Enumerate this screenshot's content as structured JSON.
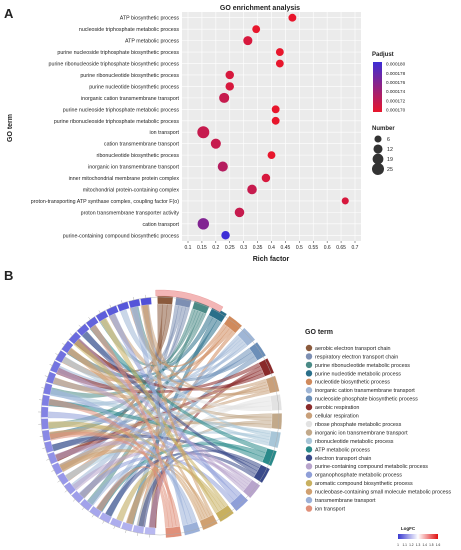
{
  "panel_a": {
    "label": "A",
    "chart_data": {
      "type": "scatter",
      "title": "GO enrichment analysis",
      "xlabel": "Rich factor",
      "ylabel": "GO term",
      "xlim": [
        0.1,
        0.7
      ],
      "xticks": [
        "0.1",
        "0.15",
        "0.2",
        "0.25",
        "0.3",
        "0.35",
        "0.4",
        "0.45",
        "0.5",
        "0.55",
        "0.6",
        "0.65",
        "0.7"
      ],
      "xtick_values": [
        0.1,
        0.15,
        0.2,
        0.25,
        0.3,
        0.35,
        0.4,
        0.45,
        0.5,
        0.55,
        0.6,
        0.65,
        0.7
      ],
      "grid": true,
      "terms": [
        {
          "term": "ATP biosynthetic process",
          "x": 0.475,
          "count": 8,
          "padj": 0.00017
        },
        {
          "term": "nucleoside triphosphate metabolic process",
          "x": 0.345,
          "count": 8,
          "padj": 0.00017
        },
        {
          "term": "ATP metabolic process",
          "x": 0.315,
          "count": 12,
          "padj": 0.000171
        },
        {
          "term": "purine nucleoside triphosphate biosynthetic process",
          "x": 0.43,
          "count": 8,
          "padj": 0.00017
        },
        {
          "term": "purine ribonucleoside triphosphate biosynthetic process",
          "x": 0.43,
          "count": 8,
          "padj": 0.00017
        },
        {
          "term": "purine ribonucleotide biosynthetic process",
          "x": 0.25,
          "count": 10,
          "padj": 0.000171
        },
        {
          "term": "purine nucleotide biosynthetic process",
          "x": 0.25,
          "count": 10,
          "padj": 0.000171
        },
        {
          "term": "inorganic cation transmembrane transport",
          "x": 0.23,
          "count": 16,
          "padj": 0.000172
        },
        {
          "term": "purine nucleoside triphosphate metabolic process",
          "x": 0.415,
          "count": 8,
          "padj": 0.00017
        },
        {
          "term": "purine ribonucleoside triphosphate metabolic process",
          "x": 0.415,
          "count": 8,
          "padj": 0.00017
        },
        {
          "term": "ion transport",
          "x": 0.155,
          "count": 25,
          "padj": 0.000172
        },
        {
          "term": "cation transmembrane transport",
          "x": 0.2,
          "count": 16,
          "padj": 0.000172
        },
        {
          "term": "ribonucleotide biosynthetic process",
          "x": 0.4,
          "count": 8,
          "padj": 0.00017
        },
        {
          "term": "inorganic ion transmembrane transport",
          "x": 0.225,
          "count": 16,
          "padj": 0.000173
        },
        {
          "term": "inner mitochondrial membrane protein complex",
          "x": 0.38,
          "count": 10,
          "padj": 0.000171
        },
        {
          "term": "mitochondrial protein-containing complex",
          "x": 0.33,
          "count": 14,
          "padj": 0.000172
        },
        {
          "term": "proton-transporting ATP synthase complex, coupling factor F(o)",
          "x": 0.665,
          "count": 6,
          "padj": 0.000171
        },
        {
          "term": "proton transmembrane transporter activity",
          "x": 0.285,
          "count": 14,
          "padj": 0.000172
        },
        {
          "term": "cation transport",
          "x": 0.155,
          "count": 22,
          "padj": 0.000176
        },
        {
          "term": "purine-containing compound biosynthetic process",
          "x": 0.235,
          "count": 10,
          "padj": 0.00018
        }
      ],
      "color_legend": {
        "title": "Padjust",
        "ticks": [
          "0.000180",
          "0.000178",
          "0.000176",
          "0.000174",
          "0.000172",
          "0.000170"
        ],
        "min": 0.00017,
        "max": 0.00018,
        "low_color": "#e8162c",
        "high_color": "#3d2ed6"
      },
      "size_legend": {
        "title": "Number",
        "values": [
          6,
          12,
          19,
          25
        ]
      }
    }
  },
  "panel_b": {
    "label": "B",
    "chart_data": {
      "type": "chord",
      "legend_title": "GO term",
      "categories": [
        {
          "term": "aerobic electron transport chain",
          "color": "#8b5a3c"
        },
        {
          "term": "respiratory electron transport chain",
          "color": "#7d8fb3"
        },
        {
          "term": "purine ribonucleotide metabolic process",
          "color": "#4a8a86"
        },
        {
          "term": "purine nucleotide metabolic process",
          "color": "#2a6f8a"
        },
        {
          "term": "nucleotide biosynthetic process",
          "color": "#d08a5c"
        },
        {
          "term": "inorganic cation transmembrane transport",
          "color": "#9fb6d6"
        },
        {
          "term": "nucleoside phosphate biosynthetic process",
          "color": "#6c8fb8"
        },
        {
          "term": "aerobic respiration",
          "color": "#8a2a2a"
        },
        {
          "term": "cellular respiration",
          "color": "#c9a07a"
        },
        {
          "term": "ribose phosphate metabolic process",
          "color": "#e2e2e2"
        },
        {
          "term": "inorganic ion transmembrane transport",
          "color": "#c2a98a"
        },
        {
          "term": "ribonucleotide metabolic process",
          "color": "#a8c6d8"
        },
        {
          "term": "ATP metabolic process",
          "color": "#2a8a8a"
        },
        {
          "term": "electron transport chain",
          "color": "#3a4a8a"
        },
        {
          "term": "purine-containing compound metabolic process",
          "color": "#b8a4cc"
        },
        {
          "term": "organophosphate metabolic process",
          "color": "#8f9fd8"
        },
        {
          "term": "aromatic compound biosynthetic process",
          "color": "#c8b060"
        },
        {
          "term": "nucleobase-containing small molecule metabolic process",
          "color": "#d0a070"
        },
        {
          "term": "transmembrane transport",
          "color": "#9bb0d8"
        },
        {
          "term": "ion transport",
          "color": "#e0907a"
        }
      ],
      "logfc_legend": {
        "title": "LogFC",
        "ticks": [
          "1",
          "1.1",
          "1.2",
          "1.3",
          "1.4",
          "1.5",
          "1.6"
        ],
        "min": 1.0,
        "max": 1.6,
        "low_color": "#3a3ad0",
        "high_color": "#e01010"
      }
    }
  }
}
